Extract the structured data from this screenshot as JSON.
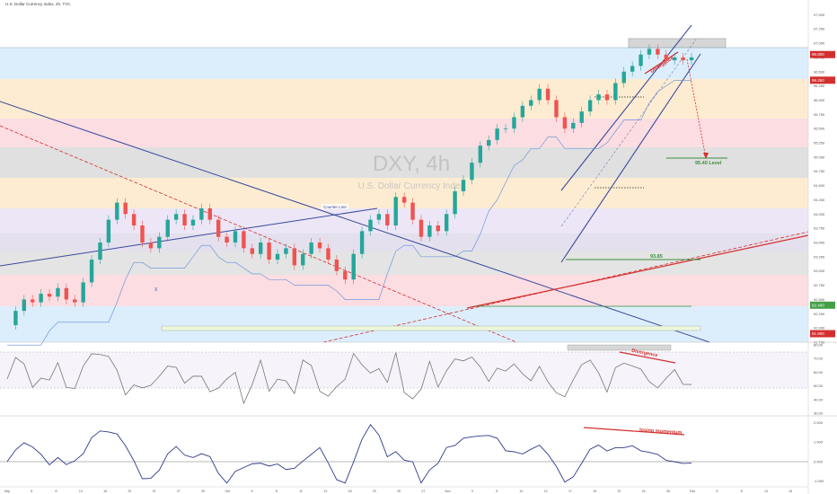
{
  "header": {
    "symbol_line": "U.S. Dollar Currency Index, 4h, TVC"
  },
  "watermark": {
    "symbol": "DXY, 4h",
    "name": "U.S. Dollar Currency Index"
  },
  "annotations": {
    "counter_line": "Counter Line",
    "divergence_price": "Divergence",
    "level_label": "95.40 Level",
    "level_93": "93.85",
    "divergence_rsi": "Divergence",
    "losing_momentum": "losing momentum",
    "wave_x": "X"
  },
  "colors": {
    "bull": "#26a69a",
    "bear": "#ef5350",
    "channel": "#3a4a9a",
    "trend_red": "#d32f2f",
    "rsi_line": "#777777",
    "macd_line": "#2e3a8c",
    "label_green": "#388e3c",
    "zone_blue": "#dceefc",
    "zone_orange": "#fdecd2",
    "zone_pink": "#fbdde2",
    "zone_gray": "#e0e0e0",
    "zone_purple": "#ece6f6"
  },
  "chart_data": [
    {
      "type": "line",
      "panel": "price",
      "title": "DXY, 4h",
      "subtitle": "U.S. Dollar Currency Index",
      "y_ticks": [
        "97.500",
        "97.250",
        "97.000",
        "96.750",
        "96.500",
        "96.250",
        "96.000",
        "95.750",
        "95.500",
        "95.250",
        "95.000",
        "94.750",
        "94.500",
        "94.250",
        "94.000",
        "93.750",
        "93.500",
        "93.250",
        "93.000",
        "92.750",
        "92.500",
        "92.250",
        "92.000",
        "91.750"
      ],
      "price_badges": [
        {
          "value": "96.800",
          "color": "#d32f2f"
        },
        {
          "value": "96.350",
          "color": "#d32f2f"
        },
        {
          "value": "92.400",
          "color": "#43a047"
        },
        {
          "value": "91.900",
          "color": "#d32f2f"
        }
      ],
      "ylim": [
        91.75,
        97.6
      ],
      "x_ticks": [
        "Sep",
        "6",
        "8",
        "13",
        "15",
        "20",
        "22",
        "27",
        "29",
        "Oct",
        "5",
        "8",
        "11",
        "13",
        "18",
        "20",
        "25",
        "27",
        "Nov",
        "3",
        "5",
        "10",
        "12",
        "17",
        "19",
        "22",
        "24",
        "26",
        "Dec",
        "6",
        "8",
        "13",
        "15"
      ],
      "series": [
        {
          "x": [
            0,
            4,
            8,
            12,
            16,
            20,
            24,
            28,
            32,
            36,
            40,
            44,
            48,
            52,
            56,
            60,
            64,
            68,
            72,
            76,
            80,
            84,
            88,
            92,
            96,
            100,
            104,
            108,
            112,
            116,
            120,
            124,
            128,
            132,
            136,
            140,
            144,
            148,
            152,
            156,
            160,
            164,
            168,
            172,
            176,
            180,
            184,
            188,
            192,
            196,
            200,
            204,
            208,
            212,
            216,
            220,
            224,
            228,
            232,
            236,
            240,
            244,
            248,
            252,
            256,
            260,
            264,
            268,
            272,
            276,
            280,
            284,
            288,
            292,
            296,
            300,
            304,
            308,
            312,
            316,
            320,
            324
          ],
          "values": [
            92.05,
            92.3,
            92.5,
            92.45,
            92.6,
            92.55,
            92.7,
            92.5,
            92.45,
            92.8,
            93.2,
            93.5,
            93.9,
            94.2,
            94.0,
            93.8,
            93.5,
            93.4,
            93.6,
            93.9,
            94.0,
            93.8,
            93.9,
            94.1,
            93.9,
            93.6,
            93.5,
            93.7,
            93.4,
            93.3,
            93.5,
            93.2,
            93.3,
            93.4,
            93.1,
            93.3,
            93.5,
            93.4,
            93.2,
            93.0,
            92.85,
            93.3,
            93.7,
            93.9,
            94.0,
            93.8,
            94.3,
            94.2,
            93.9,
            93.6,
            93.8,
            93.7,
            94.0,
            94.4,
            94.6,
            94.9,
            95.2,
            95.3,
            95.5,
            95.5,
            95.7,
            95.9,
            96.0,
            96.2,
            96.0,
            95.7,
            95.5,
            95.6,
            95.8,
            96.0,
            96.1,
            96.0,
            96.3,
            96.5,
            96.6,
            96.8,
            96.9,
            96.8,
            96.7,
            96.75,
            96.7,
            96.75
          ]
        }
      ]
    },
    {
      "type": "line",
      "panel": "rsi",
      "y_ticks": [
        "80.00",
        "70.00",
        "60.00",
        "50.00",
        "40.00",
        "30.00"
      ],
      "ylim": [
        30,
        80
      ]
    },
    {
      "type": "line",
      "panel": "momentum",
      "y_ticks": [
        "2.000",
        "1.000",
        "0.000",
        "-1.000"
      ],
      "ylim": [
        -1.2,
        2.2
      ]
    }
  ]
}
